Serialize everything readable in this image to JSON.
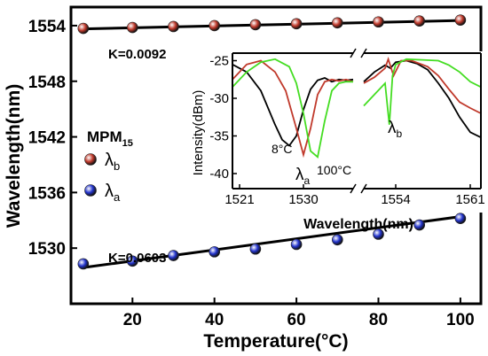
{
  "chart_data": [
    {
      "type": "scatter",
      "xlabel": "Temperature(°C)",
      "ylabel": "Wavelength(nm)",
      "xlim": [
        5,
        105
      ],
      "ylim": [
        1524,
        1556
      ],
      "xticks": [
        20,
        40,
        60,
        80,
        100
      ],
      "yticks": [
        1530,
        1536,
        1542,
        1548,
        1554
      ],
      "grid": false,
      "legend_title": "MPM",
      "legend_title_sub": "15",
      "legend_position": "left-middle",
      "series": [
        {
          "name": "λb",
          "name_main": "λ",
          "name_sub": "b",
          "color": "#c0392b",
          "x": [
            8,
            20,
            30,
            40,
            50,
            60,
            70,
            80,
            90,
            100
          ],
          "y": [
            1553.7,
            1553.8,
            1553.9,
            1554.0,
            1554.1,
            1554.2,
            1554.3,
            1554.4,
            1554.5,
            1554.6
          ],
          "fit_label": "K=0.0092",
          "fit": [
            [
              8,
              1553.65
            ],
            [
              100,
              1554.55
            ]
          ]
        },
        {
          "name": "λa",
          "name_main": "λ",
          "name_sub": "a",
          "color": "#2233cc",
          "x": [
            8,
            20,
            30,
            40,
            50,
            60,
            70,
            80,
            90,
            100
          ],
          "y": [
            1528.3,
            1528.6,
            1529.2,
            1529.6,
            1529.9,
            1530.4,
            1530.9,
            1531.5,
            1532.5,
            1533.2
          ],
          "fit_label": "K=0.0603",
          "fit": [
            [
              8,
              1527.9
            ],
            [
              100,
              1533.4
            ]
          ]
        }
      ]
    },
    {
      "type": "line",
      "xlabel": "Wavelength(nm)",
      "ylabel": "Intensity(dBm)",
      "broken_x_axis": true,
      "ylim": [
        -42,
        -24
      ],
      "yticks": [
        -25,
        -30,
        -35,
        -40
      ],
      "left_segment": {
        "xlim": [
          1520,
          1537
        ],
        "xticks": [
          1521,
          1530
        ]
      },
      "right_segment": {
        "xlim": [
          1551,
          1562
        ],
        "xticks": [
          1554,
          1561
        ]
      },
      "annotations": [
        "8°C",
        "100°C"
      ],
      "peak_label_main": "λ",
      "peak_label_a_sub": "a",
      "peak_label_b_sub": "b",
      "series": [
        {
          "color": "#000000",
          "left": {
            "x": [
              1520,
              1522,
              1524,
              1526,
              1527,
              1528,
              1529,
              1530,
              1531,
              1532,
              1533,
              1534,
              1535,
              1536,
              1537
            ],
            "y": [
              -25.5,
              -26.5,
              -29,
              -33.5,
              -35.5,
              -36.3,
              -35,
              -31.5,
              -28.8,
              -27.6,
              -27.3,
              -27.8,
              -27.5,
              -27.6,
              -27.5
            ]
          },
          "right": {
            "x": [
              1551,
              1552,
              1553,
              1553.5,
              1554,
              1555,
              1556,
              1557,
              1558,
              1559,
              1560,
              1561,
              1562
            ],
            "y": [
              -27.8,
              -26.5,
              -25.6,
              -26.0,
              -25.2,
              -25.0,
              -25.4,
              -26.2,
              -28,
              -30,
              -32.5,
              -34.5,
              -35.2
            ]
          }
        },
        {
          "color": "#c0392b",
          "left": {
            "x": [
              1520,
              1522,
              1524,
              1526,
              1527.5,
              1529,
              1530,
              1531,
              1532,
              1533,
              1534,
              1535,
              1536,
              1537
            ],
            "y": [
              -27.5,
              -25.5,
              -25.0,
              -26.5,
              -29,
              -34,
              -37.5,
              -34,
              -29.5,
              -27.8,
              -27.5,
              -27.7,
              -27.5,
              -27.8
            ]
          },
          "right": {
            "x": [
              1551,
              1552,
              1553,
              1553.3,
              1553.8,
              1554.5,
              1555.5,
              1557,
              1558,
              1559,
              1560,
              1561,
              1562
            ],
            "y": [
              -28,
              -27.2,
              -26,
              -24.8,
              -27.0,
              -25.0,
              -25.0,
              -25.8,
              -27,
              -28.8,
              -30.5,
              -31.3,
              -32
            ]
          }
        },
        {
          "color": "#44dd22",
          "left": {
            "x": [
              1520,
              1522,
              1524,
              1526,
              1528,
              1529,
              1530,
              1531,
              1532,
              1533,
              1534,
              1535,
              1536,
              1537
            ],
            "y": [
              -28.5,
              -26.5,
              -25.2,
              -24.8,
              -25.8,
              -28,
              -32,
              -37,
              -37.8,
              -33,
              -29,
              -28,
              -27.8,
              -27.8
            ]
          },
          "right": {
            "x": [
              1551,
              1552,
              1553,
              1553.4,
              1553.7,
              1554,
              1555,
              1556.5,
              1558,
              1559,
              1560,
              1561,
              1562
            ],
            "y": [
              -31,
              -29.5,
              -28,
              -33.5,
              -27,
              -25.5,
              -24.8,
              -24.9,
              -25,
              -25.6,
              -26.5,
              -27.8,
              -28.5
            ]
          }
        }
      ]
    }
  ]
}
